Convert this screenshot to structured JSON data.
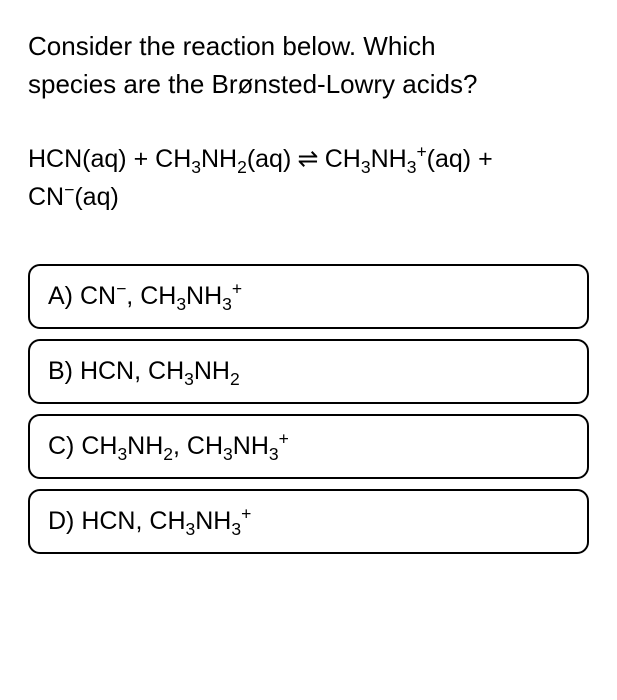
{
  "question": {
    "line1": "Consider the reaction below. Which",
    "line2": "species are the Brønsted-Lowry acids?"
  },
  "equation": {
    "r1_base": "HCN",
    "r1_phase": "(aq)",
    "plus1": " + ",
    "r2_base": "CH",
    "r2_sub1": "3",
    "r2_mid": "NH",
    "r2_sub2": "2",
    "r2_phase": "(aq)",
    "arrow": " ⇌ ",
    "p1_base": "CH",
    "p1_sub1": "3",
    "p1_mid": "NH",
    "p1_sub2": "3",
    "p1_sup": "+",
    "p1_phase": "(aq)",
    "plus2": " +",
    "p2_base": "CN",
    "p2_sup": "−",
    "p2_phase": "(aq)"
  },
  "options": {
    "a": {
      "label": "A) ",
      "s1_base": "CN",
      "s1_sup": "−",
      "sep": ", ",
      "s2_base": "CH",
      "s2_sub1": "3",
      "s2_mid": "NH",
      "s2_sub2": "3",
      "s2_sup": "+"
    },
    "b": {
      "label": "B) ",
      "s1_base": "HCN",
      "sep": ", ",
      "s2_base": "CH",
      "s2_sub1": "3",
      "s2_mid": "NH",
      "s2_sub2": "2"
    },
    "c": {
      "label": "C) ",
      "s1_base": "CH",
      "s1_sub1": "3",
      "s1_mid": "NH",
      "s1_sub2": "2",
      "sep": ", ",
      "s2_base": "CH",
      "s2_sub1": "3",
      "s2_mid": "NH",
      "s2_sub2": "3",
      "s2_sup": "+"
    },
    "d": {
      "label": "D) ",
      "s1_base": "HCN",
      "sep": ", ",
      "s2_base": "CH",
      "s2_sub1": "3",
      "s2_mid": "NH",
      "s2_sub2": "3",
      "s2_sup": "+"
    }
  },
  "styling": {
    "background_color": "#ffffff",
    "text_color": "#000000",
    "border_color": "#000000",
    "border_radius": 12,
    "border_width": 2,
    "question_fontsize": 26,
    "equation_fontsize": 25,
    "option_fontsize": 25,
    "option_gap": 10
  }
}
